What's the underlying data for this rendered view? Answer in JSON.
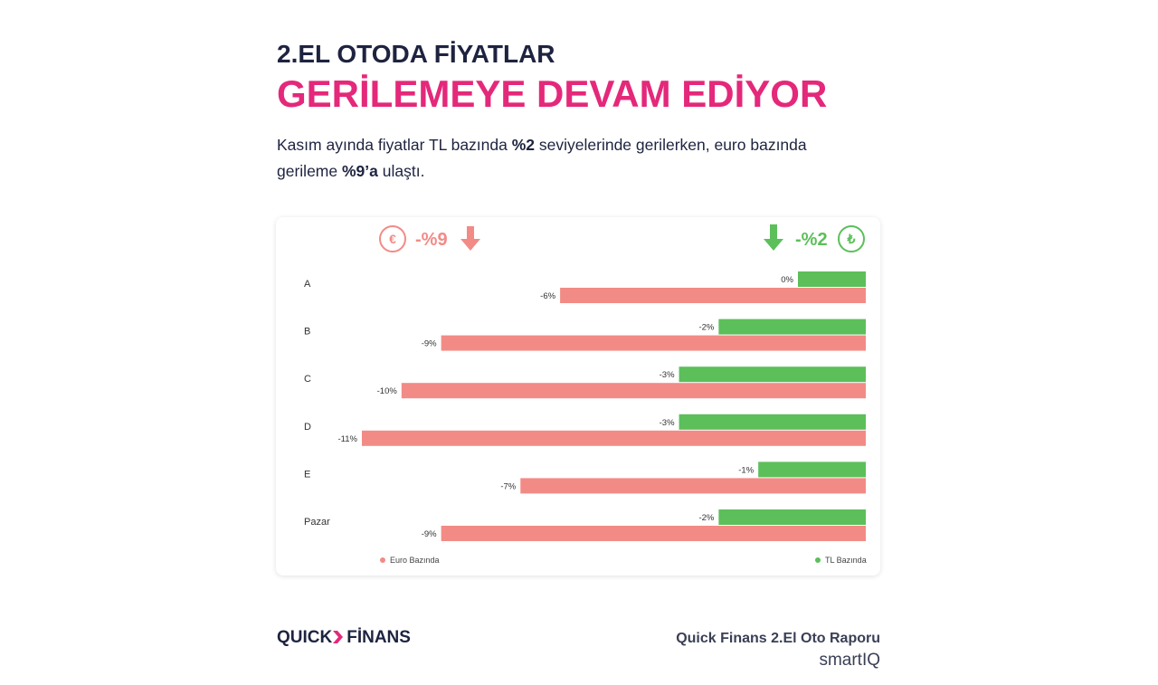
{
  "header": {
    "title_line1": "2.EL OTODA FİYATLAR",
    "title_line2": "GERİLEMEYE DEVAM EDİYOR",
    "subtitle": [
      "Kasım ayında fiyatlar TL bazında ",
      "%2",
      " seviyelerinde gerilerken, euro bazında gerileme ",
      "%9’a",
      " ulaştı."
    ]
  },
  "badges": {
    "euro_icon": "€",
    "euro_text": "-%9",
    "tl_icon": "₺",
    "tl_text": "-%2"
  },
  "chart_data": {
    "type": "bar",
    "orientation": "horizontal",
    "categories": [
      "A",
      "B",
      "C",
      "D",
      "E",
      "Pazar"
    ],
    "series": [
      {
        "name": "TL Bazında",
        "color": "#5cbf5a",
        "values": [
          0,
          -2,
          -3,
          -3,
          -1,
          -2
        ],
        "value_labels": [
          "0%",
          "-2%",
          "-3%",
          "-3%",
          "-1%",
          "-2%"
        ]
      },
      {
        "name": "Euro Bazında",
        "color": "#f28b86",
        "values": [
          -6,
          -9,
          -10,
          -11,
          -7,
          -9
        ],
        "value_labels": [
          "-6%",
          "-9%",
          "-10%",
          "-11%",
          "-7%",
          "-9%"
        ]
      }
    ],
    "xlim": [
      -11,
      0
    ]
  },
  "footer": {
    "logo_left": "QUICK",
    "logo_right": "FİNANS",
    "report": "Quick Finans 2.El Oto Raporu",
    "brand": "smartIQ"
  }
}
